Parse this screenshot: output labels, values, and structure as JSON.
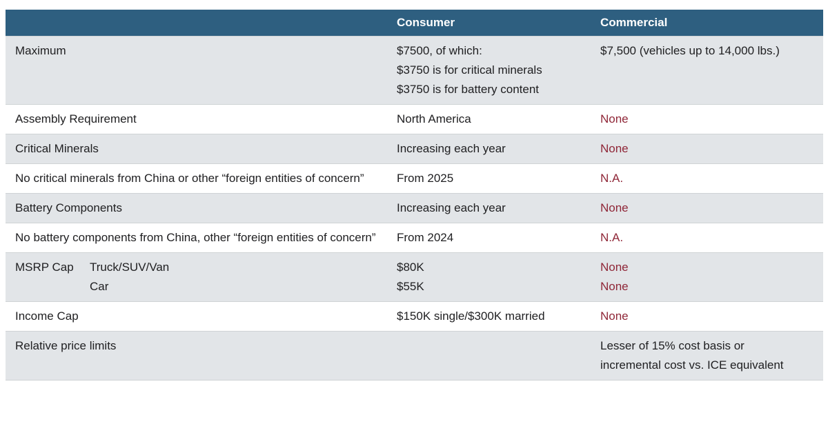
{
  "theme": {
    "header_bg": "#2e5f80",
    "header_text": "#ffffff",
    "row_alt_bg": "#e2e5e8",
    "row_bg": "#ffffff",
    "divider": "#cfd3d5",
    "text": "#202022",
    "accent_red": "#8f2637"
  },
  "chart_data": {
    "type": "table",
    "title": "",
    "columns": [
      "",
      "Consumer",
      "Commercial"
    ],
    "rows": [
      {
        "label": "Maximum",
        "consumer": [
          "$7500, of which:",
          "$3750 is for critical minerals",
          "$3750 is for battery content"
        ],
        "commercial": [
          "$7,500 (vehicles up to 14,000 lbs.)"
        ],
        "commercial_red": false
      },
      {
        "label": "Assembly Requirement",
        "consumer": [
          "North America"
        ],
        "commercial": [
          "None"
        ],
        "commercial_red": true
      },
      {
        "label": "Critical Minerals",
        "consumer": [
          "Increasing each year"
        ],
        "commercial": [
          "None"
        ],
        "commercial_red": true
      },
      {
        "label": "No critical minerals from China or other “foreign entities of concern”",
        "consumer": [
          "From 2025"
        ],
        "commercial": [
          "N.A."
        ],
        "commercial_red": true
      },
      {
        "label": "Battery Components",
        "consumer": [
          "Increasing each year"
        ],
        "commercial": [
          "None"
        ],
        "commercial_red": true
      },
      {
        "label": "No battery components from China, other “foreign entities of concern”",
        "consumer": [
          "From 2024"
        ],
        "commercial": [
          "N.A."
        ],
        "commercial_red": true
      },
      {
        "label": "MSRP Cap",
        "sublabels": [
          "Truck/SUV/Van",
          "Car"
        ],
        "consumer": [
          "$80K",
          "$55K"
        ],
        "commercial": [
          "None",
          "None"
        ],
        "commercial_red": true
      },
      {
        "label": "Income Cap",
        "consumer": [
          "$150K single/$300K married"
        ],
        "commercial": [
          "None"
        ],
        "commercial_red": true
      },
      {
        "label": "Relative price limits",
        "consumer": [],
        "commercial": [
          "Lesser of 15% cost basis or",
          "incremental cost vs. ICE equivalent"
        ],
        "commercial_red": false
      }
    ]
  }
}
